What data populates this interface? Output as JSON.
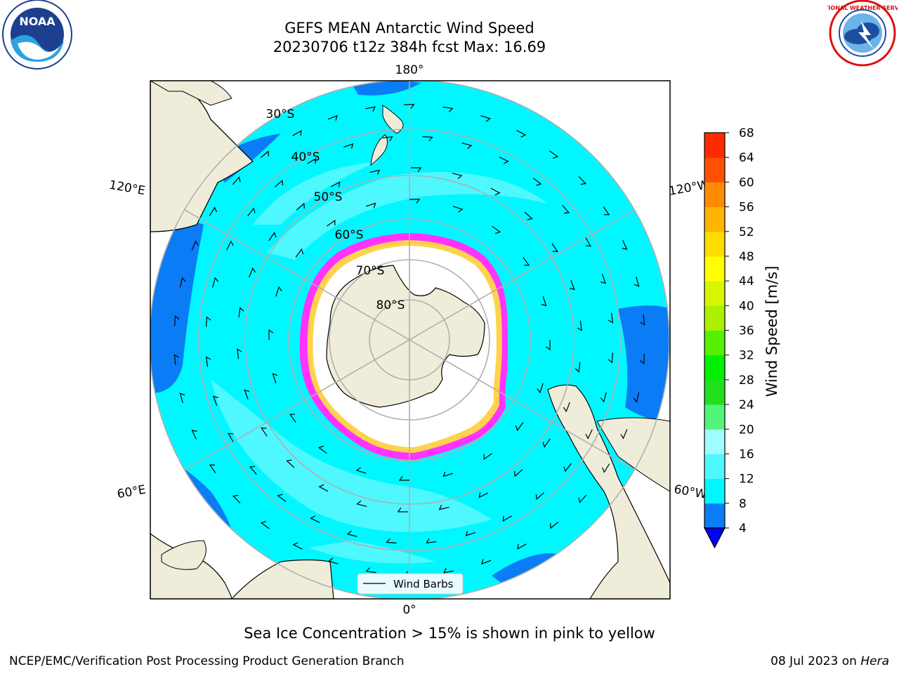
{
  "title": {
    "line1": "GEFS MEAN Antarctic Wind Speed",
    "line2": "20230706 t12z 384h fcst   Max: 16.69"
  },
  "map": {
    "projection": "south-polar-stereographic",
    "longitude_labels": {
      "top": "180°",
      "bottom": "0°",
      "upper_left": "120°E",
      "upper_right": "120°W",
      "lower_left": "60°E",
      "lower_right": "60°W"
    },
    "latitude_labels": [
      "30°S",
      "40°S",
      "50°S",
      "60°S",
      "70°S",
      "80°S"
    ],
    "legend": {
      "wind_barbs_label": "Wind Barbs"
    },
    "colors": {
      "land": "#efedda",
      "wind_8_12": "#00f7ff",
      "wind_12_16": "#4ff7ff",
      "wind_4_8": "#0a7cf6",
      "sea_ice_edge_pink": "#ff33ff",
      "sea_ice_edge_yellow": "#ffd24d",
      "ice_interior": "#ffffff",
      "gridline": "#b0b0b0"
    }
  },
  "colorbar": {
    "label": "Wind Speed [m/s]",
    "ticks": [
      "4",
      "8",
      "12",
      "16",
      "20",
      "24",
      "28",
      "32",
      "36",
      "40",
      "44",
      "48",
      "52",
      "56",
      "60",
      "64",
      "68"
    ],
    "colors": [
      "#0000ff",
      "#0a7cf6",
      "#00f7ff",
      "#4ff7ff",
      "#9ffcff",
      "#52f57a",
      "#20e020",
      "#00f000",
      "#55f000",
      "#aaf000",
      "#d8f500",
      "#ffff00",
      "#ffdc00",
      "#ffb400",
      "#ff8c00",
      "#ff5000",
      "#ff2a00",
      "#ff0000"
    ],
    "extend": "min"
  },
  "caption": "Sea Ice Concentration > 15% is shown in pink to yellow",
  "footer": {
    "left": "NCEP/EMC/Verification Post Processing Product Generation Branch",
    "right_date": "08 Jul 2023 on",
    "right_machine": "Hera"
  },
  "logos": {
    "left_text": "NOAA",
    "right_text": "NATIONAL WEATHER SERVICE"
  }
}
